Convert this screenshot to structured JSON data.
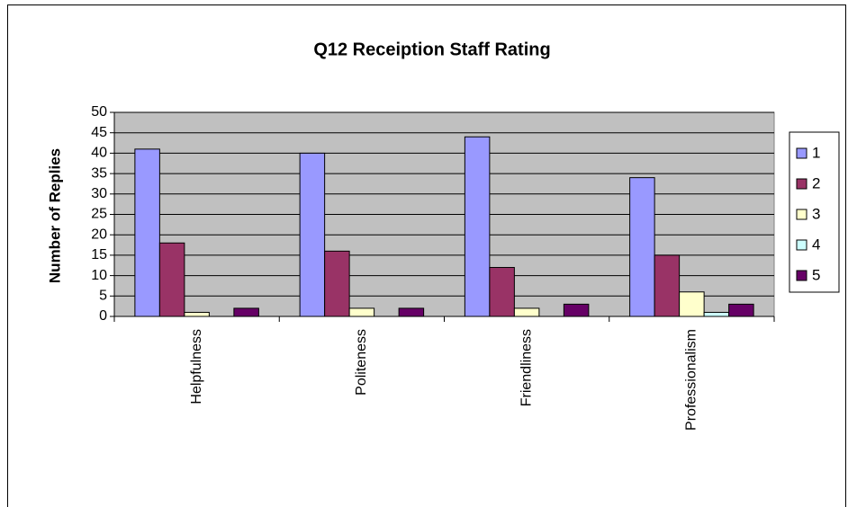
{
  "chart_data": {
    "type": "bar",
    "title": "Q12 Receiption Staff Rating",
    "y_label": "Number of Replies",
    "categories": [
      "Helpfulness",
      "Politeness",
      "Friendliness",
      "Professionalism"
    ],
    "series": [
      {
        "name": "1",
        "color": "#9999ff",
        "values": [
          41,
          40,
          44,
          34
        ]
      },
      {
        "name": "2",
        "color": "#993366",
        "values": [
          18,
          16,
          12,
          15
        ]
      },
      {
        "name": "3",
        "color": "#ffffcc",
        "values": [
          1,
          2,
          2,
          6
        ]
      },
      {
        "name": "4",
        "color": "#ccffff",
        "values": [
          0,
          0,
          0,
          1
        ]
      },
      {
        "name": "5",
        "color": "#660066",
        "values": [
          2,
          2,
          3,
          3
        ]
      }
    ],
    "ylim": [
      0,
      50
    ],
    "yticks": [
      0,
      5,
      10,
      15,
      20,
      25,
      30,
      35,
      40,
      45,
      50
    ],
    "grid": true,
    "legend": "right"
  }
}
